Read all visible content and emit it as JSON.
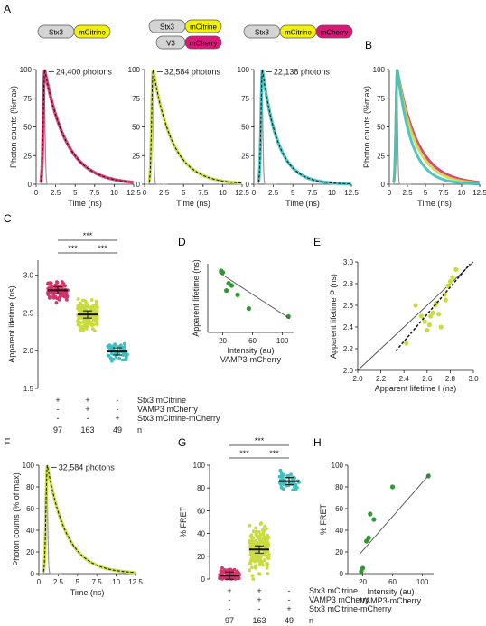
{
  "colors": {
    "stx3_box": "#d4d4d4",
    "mcitrine": "#f2f200",
    "mcherry": "#e0157a",
    "magenta_pts": "#d6336c",
    "yellowgreen_pts": "#c9dc3c",
    "cyan_pts": "#3fbfbf",
    "green_pts": "#2e9a2e",
    "irf": "#9a9a9a"
  },
  "panels": {
    "A": "A",
    "B": "B",
    "C": "C",
    "D": "D",
    "E": "E",
    "F": "F",
    "G": "G",
    "H": "H"
  },
  "constructs": {
    "stx3": "Stx3",
    "mcitrine": "mCitrine",
    "v3": "V3",
    "mcherry": "mCherry"
  },
  "n_label": "n",
  "sig": "***",
  "chart_data": [
    {
      "panel": "A1",
      "type": "line",
      "annotation": "24,400 photons",
      "xlabel": "Time (ns)",
      "ylabel": "Photon counts (%max)",
      "xlim": [
        0,
        12.5
      ],
      "ylim": [
        0,
        100
      ],
      "xticks": [
        "0",
        "2.5",
        "5",
        "7.5",
        "10",
        "12.5"
      ],
      "yticks": [
        "0",
        "25",
        "50",
        "75",
        "100"
      ],
      "data_color": "#d6336c",
      "decay_tau_ns": 2.8
    },
    {
      "panel": "A2",
      "type": "line",
      "annotation": "32,584 photons",
      "xlabel": "Time (ns)",
      "xlim": [
        0,
        12.5
      ],
      "ylim": [
        0,
        100
      ],
      "xticks": [
        "0",
        "2.5",
        "5",
        "7.5",
        "10",
        "12.5"
      ],
      "yticks": [
        "0",
        "25",
        "50",
        "75",
        "100"
      ],
      "data_color": "#c9dc3c",
      "decay_tau_ns": 2.5
    },
    {
      "panel": "A3",
      "type": "line",
      "annotation": "22,138 photons",
      "xlabel": "Time (ns)",
      "xlim": [
        0,
        12.5
      ],
      "ylim": [
        0,
        100
      ],
      "xticks": [
        "0",
        "2.5",
        "5",
        "7.5",
        "10",
        "12.5"
      ],
      "yticks": [
        "0",
        "25",
        "50",
        "75",
        "100"
      ],
      "data_color": "#3fbfbf",
      "decay_tau_ns": 2.0
    },
    {
      "panel": "B",
      "type": "line",
      "xlabel": "Time (ns)",
      "ylabel": "Photon counts (%max)",
      "xlim": [
        0,
        12.5
      ],
      "ylim": [
        0,
        100
      ],
      "xticks": [
        "0",
        "2.5",
        "5",
        "7.5",
        "10",
        "12.5"
      ],
      "yticks": [
        "0",
        "25",
        "50",
        "75",
        "100"
      ],
      "series": [
        {
          "color": "#d6336c",
          "decay_tau_ns": 2.8
        },
        {
          "color": "#c9dc3c",
          "decay_tau_ns": 2.5
        },
        {
          "color": "#3fbfbf",
          "decay_tau_ns": 2.0
        }
      ]
    },
    {
      "panel": "C",
      "type": "scatter",
      "ylabel": "Apparent lifetime (ns)",
      "ylim": [
        1.5,
        3.2
      ],
      "yticks": [
        "1.5",
        "2.0",
        "2.5",
        "3.0"
      ],
      "groups": [
        {
          "mean": 2.8,
          "n": "97",
          "color": "#d6336c",
          "sign_row1": "+",
          "sign_row2": "-",
          "sign_row3": "-"
        },
        {
          "mean": 2.48,
          "n": "163",
          "color": "#c9dc3c",
          "sign_row1": "+",
          "sign_row2": "+",
          "sign_row3": "-"
        },
        {
          "mean": 1.99,
          "n": "49",
          "color": "#3fbfbf",
          "sign_row1": "-",
          "sign_row2": "-",
          "sign_row3": "+"
        }
      ],
      "row_labels": [
        "Stx3 mCitrine",
        "VAMP3 mCherry",
        "Stx3 mCitrine-mCherry"
      ]
    },
    {
      "panel": "D",
      "type": "scatter",
      "xlabel": "Intensity (au)",
      "xlabel2": "VAMP3-mCherry",
      "ylabel": "Apparent lifetime (ns)",
      "xlim": [
        0,
        115
      ],
      "xticks": [
        "20",
        "60",
        "100"
      ],
      "points": [
        [
          18,
          2.95
        ],
        [
          20,
          2.93
        ],
        [
          28,
          2.78
        ],
        [
          32,
          2.75
        ],
        [
          25,
          2.68
        ],
        [
          40,
          2.62
        ],
        [
          55,
          2.43
        ],
        [
          108,
          2.32
        ]
      ],
      "fit": [
        [
          15,
          2.93
        ],
        [
          110,
          2.29
        ]
      ]
    },
    {
      "panel": "E",
      "type": "scatter",
      "xlabel": "Apparent lifetime I (ns)",
      "ylabel": "Apparent lifetime P (ns)",
      "xlim": [
        2.0,
        3.0
      ],
      "ylim": [
        2.0,
        3.0
      ],
      "xticks": [
        "2.0",
        "2.2",
        "2.4",
        "2.6",
        "2.8",
        "3.0"
      ],
      "yticks": [
        "2.0",
        "2.2",
        "2.4",
        "2.6",
        "2.8",
        "3.0"
      ],
      "points": [
        [
          2.42,
          2.25
        ],
        [
          2.5,
          2.6
        ],
        [
          2.58,
          2.45
        ],
        [
          2.6,
          2.37
        ],
        [
          2.62,
          2.42
        ],
        [
          2.63,
          2.5
        ],
        [
          2.65,
          2.53
        ],
        [
          2.67,
          2.6
        ],
        [
          2.7,
          2.52
        ],
        [
          2.72,
          2.4
        ],
        [
          2.75,
          2.7
        ],
        [
          2.78,
          2.78
        ],
        [
          2.8,
          2.82
        ],
        [
          2.82,
          2.86
        ],
        [
          2.85,
          2.93
        ],
        [
          2.76,
          2.65
        ],
        [
          2.68,
          2.62
        ],
        [
          2.55,
          2.5
        ]
      ],
      "fit_dashed": [
        [
          2.33,
          2.18
        ],
        [
          2.97,
          2.98
        ]
      ],
      "identity": [
        [
          2.0,
          2.0
        ],
        [
          3.0,
          3.0
        ]
      ]
    },
    {
      "panel": "F",
      "type": "line",
      "annotation": "32,584 photons",
      "xlabel": "Time (ns)",
      "ylabel": "Photon counts (% of max)",
      "xlim": [
        0,
        12.5
      ],
      "ylim": [
        0,
        100
      ],
      "xticks": [
        "0",
        "2.5",
        "5",
        "7.5",
        "10",
        "12.5"
      ],
      "yticks": [
        "0",
        "20",
        "40",
        "60",
        "80",
        "100"
      ],
      "data_color": "#c9dc3c",
      "decay_tau_ns": 2.5
    },
    {
      "panel": "G",
      "type": "scatter",
      "ylabel": "% FRET",
      "ylim": [
        0,
        100
      ],
      "yticks": [
        "0",
        "20",
        "40",
        "60",
        "80",
        "100"
      ],
      "groups": [
        {
          "mean": 3,
          "n": "97",
          "color": "#d6336c",
          "sign_row1": "+",
          "sign_row2": "-",
          "sign_row3": "-"
        },
        {
          "mean": 26,
          "n": "163",
          "color": "#c9dc3c",
          "sign_row1": "+",
          "sign_row2": "+",
          "sign_row3": "-"
        },
        {
          "mean": 86,
          "n": "49",
          "color": "#3fbfbf",
          "sign_row1": "-",
          "sign_row2": "-",
          "sign_row3": "+"
        }
      ],
      "row_labels": [
        "Stx3 mCitrine",
        "VAMP3 mCherry",
        "Stx3 mCitrine-mCherry"
      ]
    },
    {
      "panel": "H",
      "type": "scatter",
      "xlabel": "Intensity (au)",
      "xlabel2": "VAMP3-mCherry",
      "ylabel": "% FRET",
      "xlim": [
        0,
        115
      ],
      "ylim": [
        0,
        100
      ],
      "xticks": [
        "20",
        "60",
        "100"
      ],
      "yticks": [
        "0",
        "20",
        "40",
        "60",
        "80",
        "100"
      ],
      "points": [
        [
          18,
          2
        ],
        [
          20,
          5
        ],
        [
          25,
          30
        ],
        [
          28,
          33
        ],
        [
          30,
          55
        ],
        [
          35,
          50
        ],
        [
          60,
          80
        ],
        [
          108,
          90
        ]
      ],
      "fit": [
        [
          16,
          18
        ],
        [
          110,
          92
        ]
      ]
    }
  ]
}
